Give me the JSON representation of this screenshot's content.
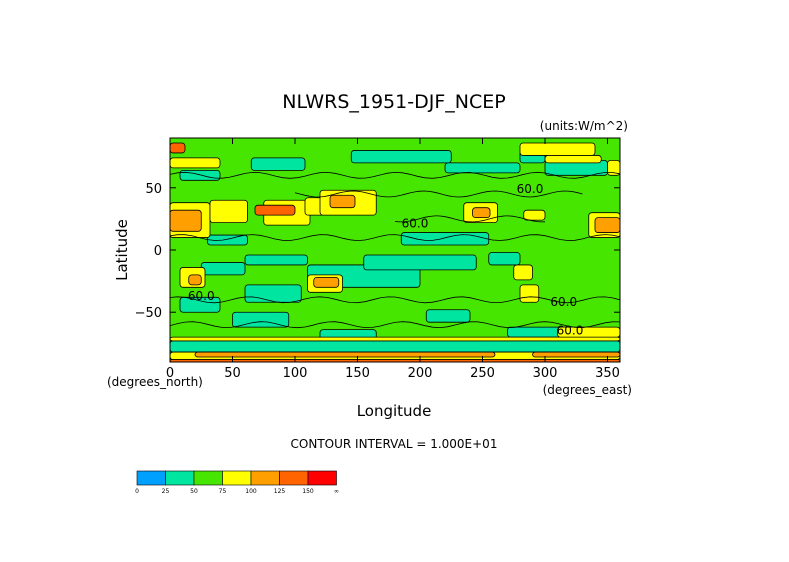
{
  "chart_data": {
    "type": "heatmap",
    "title": "NLWRS_1951-DJF_NCEP",
    "units_label": "(units:W/m^2)",
    "xlabel": "Longitude",
    "ylabel": "Latitude",
    "x_unit_label": "(degrees_east)",
    "y_unit_label": "(degrees_north)",
    "xlim": [
      0,
      360
    ],
    "ylim": [
      -90,
      90
    ],
    "x_ticks": [
      0,
      50,
      100,
      150,
      200,
      250,
      300,
      350
    ],
    "y_ticks": [
      -50,
      0,
      50
    ],
    "x_tick_labels": [
      "0",
      "50",
      "100",
      "150",
      "200",
      "250",
      "300",
      "350"
    ],
    "y_tick_labels": [
      "−50",
      "0",
      "50"
    ],
    "contour_interval_label": "CONTOUR INTERVAL = 1.000E+01",
    "contour_labels": [
      {
        "text": "60.0",
        "lon": 196,
        "lat": 18
      },
      {
        "text": "60.0",
        "lon": 288,
        "lat": 46
      },
      {
        "text": "60.0",
        "lon": 25,
        "lat": -40
      },
      {
        "text": "60.0",
        "lon": 315,
        "lat": -45
      },
      {
        "text": "60.0",
        "lon": 320,
        "lat": -68
      }
    ],
    "legend": {
      "levels": [
        "0",
        "25",
        "50",
        "75",
        "100",
        "125",
        "150",
        "∞"
      ],
      "colors": [
        "#00a0ff",
        "#00e6a0",
        "#46e600",
        "#ffff00",
        "#ffa000",
        "#ff6400",
        "#ff0000"
      ]
    },
    "regions": [
      {
        "level": 2,
        "lon": [
          0,
          360
        ],
        "lat": [
          -90,
          90
        ]
      },
      {
        "level": 1,
        "lon": [
          0,
          360
        ],
        "lat": [
          -82,
          -73
        ]
      },
      {
        "level": 1,
        "lon": [
          120,
          165
        ],
        "lat": [
          -72,
          -64
        ]
      },
      {
        "level": 1,
        "lon": [
          270,
          320
        ],
        "lat": [
          -70,
          -62
        ]
      },
      {
        "level": 1,
        "lon": [
          50,
          95
        ],
        "lat": [
          -62,
          -50
        ]
      },
      {
        "level": 1,
        "lon": [
          205,
          240
        ],
        "lat": [
          -58,
          -48
        ]
      },
      {
        "level": 1,
        "lon": [
          8,
          40
        ],
        "lat": [
          -50,
          -38
        ]
      },
      {
        "level": 1,
        "lon": [
          60,
          105
        ],
        "lat": [
          -42,
          -28
        ]
      },
      {
        "level": 1,
        "lon": [
          110,
          200
        ],
        "lat": [
          -30,
          -12
        ]
      },
      {
        "level": 1,
        "lon": [
          25,
          60
        ],
        "lat": [
          -20,
          -10
        ]
      },
      {
        "level": 1,
        "lon": [
          155,
          245
        ],
        "lat": [
          -16,
          -4
        ]
      },
      {
        "level": 1,
        "lon": [
          255,
          280
        ],
        "lat": [
          -12,
          -2
        ]
      },
      {
        "level": 1,
        "lon": [
          60,
          110
        ],
        "lat": [
          -12,
          -4
        ]
      },
      {
        "level": 1,
        "lon": [
          30,
          62
        ],
        "lat": [
          4,
          12
        ]
      },
      {
        "level": 1,
        "lon": [
          185,
          255
        ],
        "lat": [
          4,
          14
        ]
      },
      {
        "level": 1,
        "lon": [
          8,
          40
        ],
        "lat": [
          56,
          64
        ]
      },
      {
        "level": 1,
        "lon": [
          65,
          108
        ],
        "lat": [
          64,
          74
        ]
      },
      {
        "level": 1,
        "lon": [
          145,
          225
        ],
        "lat": [
          70,
          80
        ]
      },
      {
        "level": 1,
        "lon": [
          220,
          280
        ],
        "lat": [
          62,
          70
        ]
      },
      {
        "level": 1,
        "lon": [
          300,
          350
        ],
        "lat": [
          60,
          72
        ]
      },
      {
        "level": 1,
        "lon": [
          280,
          300
        ],
        "lat": [
          70,
          80
        ]
      },
      {
        "level": 3,
        "lon": [
          0,
          360
        ],
        "lat": [
          -88,
          -82
        ]
      },
      {
        "level": 4,
        "lon": [
          20,
          260
        ],
        "lat": [
          -86,
          -82
        ]
      },
      {
        "level": 4,
        "lon": [
          290,
          360
        ],
        "lat": [
          -86,
          -82
        ]
      },
      {
        "level": 3,
        "lon": [
          0,
          360
        ],
        "lat": [
          -73,
          -70
        ]
      },
      {
        "level": 3,
        "lon": [
          310,
          360
        ],
        "lat": [
          -70,
          -62
        ]
      },
      {
        "level": 3,
        "lon": [
          8,
          28
        ],
        "lat": [
          -30,
          -14
        ]
      },
      {
        "level": 4,
        "lon": [
          15,
          25
        ],
        "lat": [
          -28,
          -20
        ]
      },
      {
        "level": 3,
        "lon": [
          110,
          138
        ],
        "lat": [
          -34,
          -20
        ]
      },
      {
        "level": 4,
        "lon": [
          115,
          135
        ],
        "lat": [
          -30,
          -22
        ]
      },
      {
        "level": 3,
        "lon": [
          280,
          295
        ],
        "lat": [
          -42,
          -28
        ]
      },
      {
        "level": 3,
        "lon": [
          275,
          290
        ],
        "lat": [
          -24,
          -12
        ]
      },
      {
        "level": 3,
        "lon": [
          0,
          32
        ],
        "lat": [
          10,
          38
        ]
      },
      {
        "level": 4,
        "lon": [
          0,
          25
        ],
        "lat": [
          15,
          32
        ]
      },
      {
        "level": 3,
        "lon": [
          32,
          62
        ],
        "lat": [
          22,
          40
        ]
      },
      {
        "level": 3,
        "lon": [
          75,
          112
        ],
        "lat": [
          20,
          40
        ]
      },
      {
        "level": 3,
        "lon": [
          108,
          125
        ],
        "lat": [
          28,
          42
        ]
      },
      {
        "level": 3,
        "lon": [
          120,
          165
        ],
        "lat": [
          28,
          48
        ]
      },
      {
        "level": 4,
        "lon": [
          128,
          148
        ],
        "lat": [
          34,
          44
        ]
      },
      {
        "level": 3,
        "lon": [
          235,
          262
        ],
        "lat": [
          22,
          38
        ]
      },
      {
        "level": 4,
        "lon": [
          242,
          256
        ],
        "lat": [
          26,
          34
        ]
      },
      {
        "level": 3,
        "lon": [
          283,
          300
        ],
        "lat": [
          24,
          32
        ]
      },
      {
        "level": 3,
        "lon": [
          335,
          360
        ],
        "lat": [
          10,
          30
        ]
      },
      {
        "level": 4,
        "lon": [
          340,
          360
        ],
        "lat": [
          14,
          26
        ]
      },
      {
        "level": 3,
        "lon": [
          0,
          40
        ],
        "lat": [
          66,
          74
        ]
      },
      {
        "level": 3,
        "lon": [
          280,
          340
        ],
        "lat": [
          76,
          86
        ]
      },
      {
        "level": 3,
        "lon": [
          300,
          345
        ],
        "lat": [
          70,
          76
        ]
      },
      {
        "level": 3,
        "lon": [
          350,
          360
        ],
        "lat": [
          60,
          72
        ]
      },
      {
        "level": 5,
        "lon": [
          0,
          360
        ],
        "lat": [
          -90,
          -88
        ]
      },
      {
        "level": 5,
        "lon": [
          68,
          100
        ],
        "lat": [
          28,
          36
        ]
      },
      {
        "level": 5,
        "lon": [
          0,
          12
        ],
        "lat": [
          78,
          86
        ]
      }
    ],
    "contours": [
      {
        "lat": 10,
        "lon": [
          0,
          360
        ]
      },
      {
        "lat": -40,
        "lon": [
          0,
          360
        ]
      },
      {
        "lat": -60,
        "lon": [
          0,
          360
        ]
      },
      {
        "lat": 60,
        "lon": [
          0,
          360
        ]
      },
      {
        "lat": 45,
        "lon": [
          100,
          330
        ]
      },
      {
        "lat": 25,
        "lon": [
          180,
          300
        ]
      }
    ]
  }
}
